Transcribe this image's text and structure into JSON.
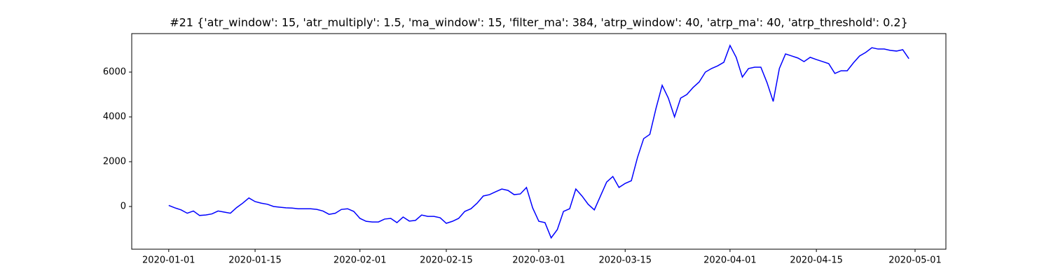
{
  "chart_data": {
    "type": "line",
    "title": "#21 {'atr_window': 15, 'atr_multiply': 1.5, 'ma_window': 15, 'filter_ma': 384, 'atrp_window': 40, 'atrp_ma': 40, 'atrp_threshold': 0.2}",
    "x": [
      "2020-01-01",
      "2020-01-02",
      "2020-01-03",
      "2020-01-04",
      "2020-01-05",
      "2020-01-06",
      "2020-01-07",
      "2020-01-08",
      "2020-01-09",
      "2020-01-10",
      "2020-01-11",
      "2020-01-12",
      "2020-01-13",
      "2020-01-14",
      "2020-01-15",
      "2020-01-16",
      "2020-01-17",
      "2020-01-18",
      "2020-01-19",
      "2020-01-20",
      "2020-01-21",
      "2020-01-22",
      "2020-01-23",
      "2020-01-24",
      "2020-01-25",
      "2020-01-26",
      "2020-01-27",
      "2020-01-28",
      "2020-01-29",
      "2020-01-30",
      "2020-01-31",
      "2020-02-01",
      "2020-02-02",
      "2020-02-03",
      "2020-02-04",
      "2020-02-05",
      "2020-02-06",
      "2020-02-07",
      "2020-02-08",
      "2020-02-09",
      "2020-02-10",
      "2020-02-11",
      "2020-02-12",
      "2020-02-13",
      "2020-02-14",
      "2020-02-15",
      "2020-02-16",
      "2020-02-17",
      "2020-02-18",
      "2020-02-19",
      "2020-02-20",
      "2020-02-21",
      "2020-02-22",
      "2020-02-23",
      "2020-02-24",
      "2020-02-25",
      "2020-02-26",
      "2020-02-27",
      "2020-02-28",
      "2020-02-29",
      "2020-03-01",
      "2020-03-02",
      "2020-03-03",
      "2020-03-04",
      "2020-03-05",
      "2020-03-06",
      "2020-03-07",
      "2020-03-08",
      "2020-03-09",
      "2020-03-10",
      "2020-03-11",
      "2020-03-12",
      "2020-03-13",
      "2020-03-14",
      "2020-03-15",
      "2020-03-16",
      "2020-03-17",
      "2020-03-18",
      "2020-03-19",
      "2020-03-20",
      "2020-03-21",
      "2020-03-22",
      "2020-03-23",
      "2020-03-24",
      "2020-03-25",
      "2020-03-26",
      "2020-03-27",
      "2020-03-28",
      "2020-03-29",
      "2020-03-30",
      "2020-03-31",
      "2020-04-01",
      "2020-04-02",
      "2020-04-03",
      "2020-04-04",
      "2020-04-05",
      "2020-04-06",
      "2020-04-07",
      "2020-04-08",
      "2020-04-09",
      "2020-04-10",
      "2020-04-11",
      "2020-04-12",
      "2020-04-13",
      "2020-04-14",
      "2020-04-15",
      "2020-04-16",
      "2020-04-17",
      "2020-04-18",
      "2020-04-19",
      "2020-04-20",
      "2020-04-21",
      "2020-04-22",
      "2020-04-23",
      "2020-04-24",
      "2020-04-25",
      "2020-04-26",
      "2020-04-27",
      "2020-04-28",
      "2020-04-29",
      "2020-04-30"
    ],
    "series": [
      {
        "color": "#0000ff",
        "values": [
          50,
          -60,
          -150,
          -300,
          -200,
          -400,
          -380,
          -330,
          -200,
          -250,
          -300,
          -50,
          150,
          380,
          220,
          150,
          100,
          0,
          -30,
          -60,
          -70,
          -100,
          -100,
          -100,
          -130,
          -200,
          -350,
          -300,
          -130,
          -100,
          -220,
          -530,
          -660,
          -690,
          -690,
          -560,
          -530,
          -720,
          -470,
          -650,
          -620,
          -380,
          -440,
          -440,
          -500,
          -750,
          -660,
          -530,
          -220,
          -100,
          150,
          470,
          530,
          660,
          780,
          720,
          530,
          560,
          850,
          -60,
          -660,
          -720,
          -1400,
          -1030,
          -220,
          -100,
          780,
          470,
          100,
          -150,
          470,
          1090,
          1340,
          850,
          1030,
          1150,
          2190,
          3030,
          3220,
          4380,
          5410,
          4840,
          4000,
          4840,
          5000,
          5310,
          5560,
          6000,
          6160,
          6280,
          6440,
          7190,
          6660,
          5780,
          6160,
          6220,
          6220,
          5530,
          4690,
          6160,
          6810,
          6720,
          6630,
          6470,
          6660,
          6560,
          6470,
          6380,
          5940,
          6060,
          6060,
          6410,
          6720,
          6880,
          7090,
          7030,
          7030,
          6970,
          6940,
          7000,
          6600
        ]
      }
    ],
    "xlim": [
      "2019-12-26",
      "2020-05-06"
    ],
    "xticks": [
      "2020-01-01",
      "2020-01-15",
      "2020-02-01",
      "2020-02-15",
      "2020-03-01",
      "2020-03-15",
      "2020-04-01",
      "2020-04-15",
      "2020-05-01"
    ],
    "ylim": [
      -1906,
      7719
    ],
    "yticks": [
      0,
      2000,
      4000,
      6000
    ]
  }
}
